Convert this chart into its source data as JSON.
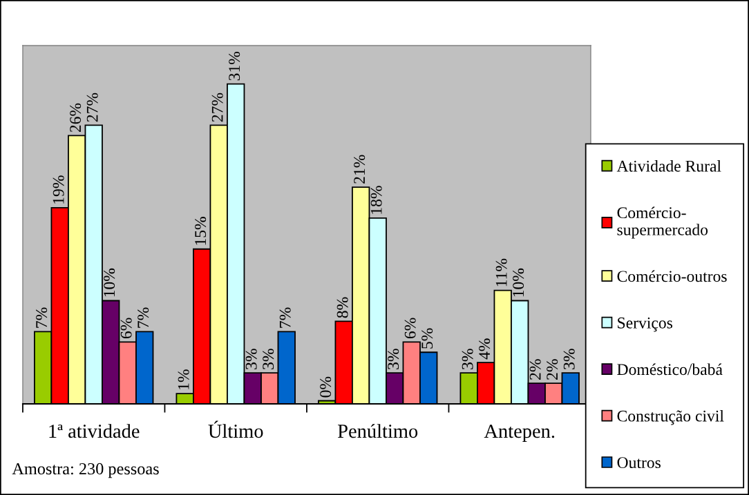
{
  "chart_data": {
    "type": "bar",
    "categories": [
      "1ª atividade",
      "Último",
      "Penúltimo",
      "Antepen."
    ],
    "series": [
      {
        "name": "Atividade Rural",
        "color": "#99cc00",
        "values": [
          7,
          1,
          0.3,
          3
        ],
        "value_labels": [
          "7%",
          "1%",
          "0%",
          "3%"
        ]
      },
      {
        "name": "Comércio-supermercado",
        "color": "#ff0000",
        "values": [
          19,
          15,
          8,
          4
        ],
        "value_labels": [
          "19%",
          "15%",
          "8%",
          "4%"
        ]
      },
      {
        "name": "Comércio-outros",
        "color": "#ffff99",
        "values": [
          26,
          27,
          21,
          11
        ],
        "value_labels": [
          "26%",
          "27%",
          "21%",
          "11%"
        ]
      },
      {
        "name": "Serviços",
        "color": "#ccffff",
        "values": [
          27,
          31,
          18,
          10
        ],
        "value_labels": [
          "27%",
          "31%",
          "18%",
          "10%"
        ]
      },
      {
        "name": "Doméstico/babá",
        "color": "#660066",
        "values": [
          10,
          3,
          3,
          2
        ],
        "value_labels": [
          "10%",
          "3%",
          "3%",
          "2%"
        ]
      },
      {
        "name": "Construção civil",
        "color": "#ff8080",
        "values": [
          6,
          3,
          6,
          2
        ],
        "value_labels": [
          "6%",
          "3%",
          "6%",
          "2%"
        ]
      },
      {
        "name": "Outros",
        "color": "#0066cc",
        "values": [
          7,
          7,
          5,
          3
        ],
        "value_labels": [
          "7%",
          "7%",
          "5%",
          "3%"
        ]
      }
    ],
    "legend": "right",
    "annotations": [
      "Amostra: 230 pessoas"
    ]
  }
}
